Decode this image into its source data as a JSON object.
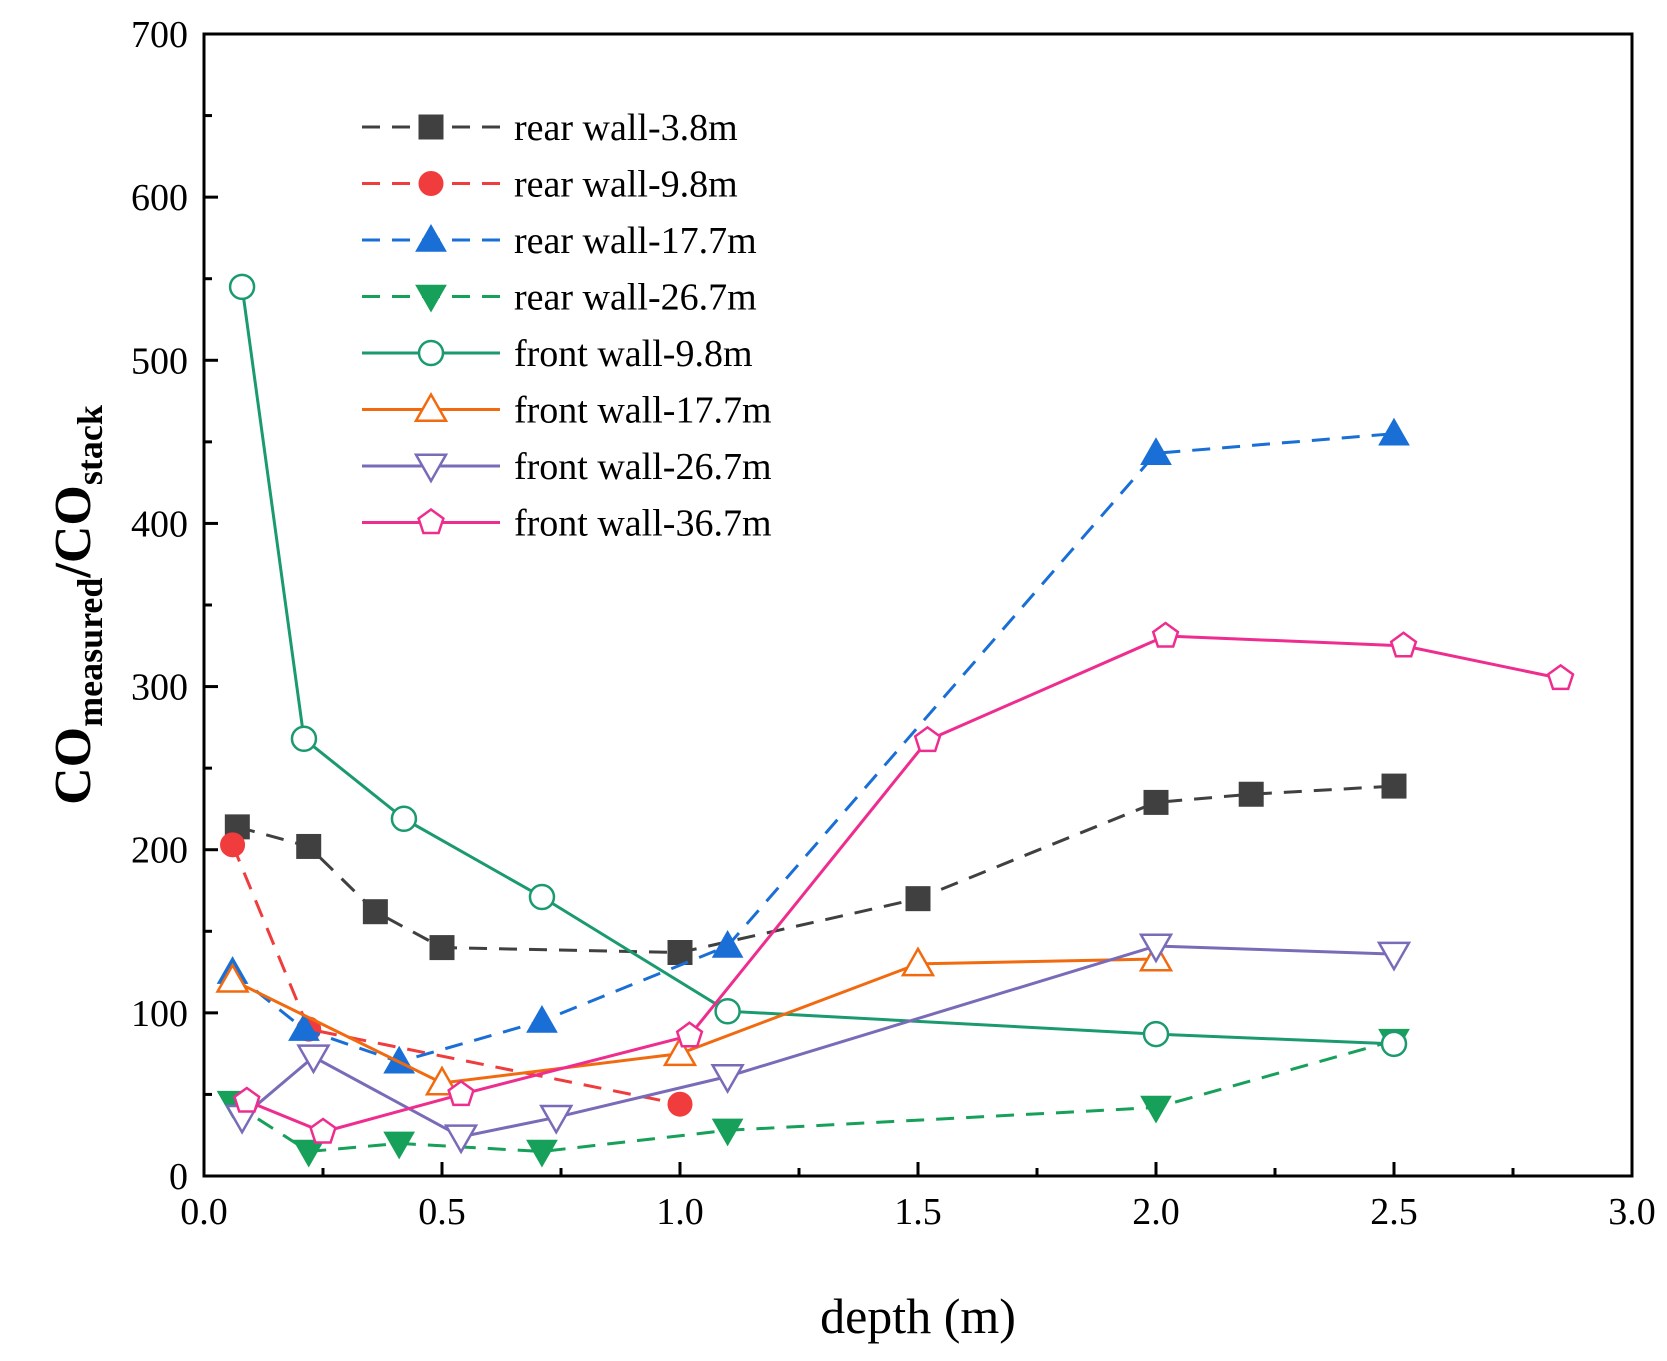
{
  "chart_data": {
    "type": "line",
    "title": "",
    "xlabel": "depth (m)",
    "ylabel": {
      "main": "CO",
      "sub1": "measured",
      "slash": "/CO",
      "sub2": "stack"
    },
    "xlim": [
      0,
      3.0
    ],
    "ylim": [
      0,
      700
    ],
    "xticks": [
      "0.0",
      "0.5",
      "1.0",
      "1.5",
      "2.0",
      "2.5",
      "3.0"
    ],
    "yticks": [
      "0",
      "100",
      "200",
      "300",
      "400",
      "500",
      "600",
      "700"
    ],
    "legend_position": "top-left",
    "series": [
      {
        "name": "rear wall-3.8m",
        "color": "#404040",
        "dash": true,
        "marker": "square",
        "filled": true,
        "x": [
          0.07,
          0.22,
          0.36,
          0.5,
          1.0,
          1.5,
          2.0,
          2.2,
          2.5
        ],
        "y": [
          214,
          202,
          162,
          140,
          137,
          170,
          229,
          234,
          239
        ]
      },
      {
        "name": "rear wall-9.8m",
        "color": "#f03c3c",
        "dash": true,
        "marker": "circle",
        "filled": true,
        "x": [
          0.06,
          0.22,
          1.0
        ],
        "y": [
          203,
          90,
          44
        ]
      },
      {
        "name": "rear wall-17.7m",
        "color": "#1a6fd6",
        "dash": true,
        "marker": "triangle-up",
        "filled": true,
        "x": [
          0.06,
          0.21,
          0.41,
          0.71,
          1.1,
          2.0,
          2.5
        ],
        "y": [
          125,
          90,
          70,
          95,
          141,
          443,
          455
        ]
      },
      {
        "name": "rear wall-26.7m",
        "color": "#16a05a",
        "dash": true,
        "marker": "triangle-down",
        "filled": true,
        "x": [
          0.06,
          0.22,
          0.41,
          0.71,
          1.1,
          2.0,
          2.5
        ],
        "y": [
          45,
          15,
          20,
          15,
          28,
          42,
          83
        ]
      },
      {
        "name": "front wall-9.8m",
        "color": "#1a9a6e",
        "dash": false,
        "marker": "circle",
        "filled": false,
        "x": [
          0.08,
          0.21,
          0.42,
          0.71,
          1.1,
          2.0,
          2.5
        ],
        "y": [
          545,
          268,
          219,
          171,
          101,
          87,
          81
        ]
      },
      {
        "name": "front wall-17.7m",
        "color": "#f26a0f",
        "dash": false,
        "marker": "triangle-up",
        "filled": false,
        "x": [
          0.06,
          0.5,
          1.0,
          1.5,
          2.0
        ],
        "y": [
          120,
          57,
          75,
          130,
          133
        ]
      },
      {
        "name": "front wall-26.7m",
        "color": "#7a6bb8",
        "dash": false,
        "marker": "triangle-down",
        "filled": false,
        "x": [
          0.08,
          0.23,
          0.54,
          0.74,
          1.1,
          2.0,
          2.5
        ],
        "y": [
          36,
          73,
          24,
          36,
          61,
          141,
          136
        ]
      },
      {
        "name": "front wall-36.7m",
        "color": "#ee2d8f",
        "dash": false,
        "marker": "pentagon",
        "filled": false,
        "x": [
          0.09,
          0.25,
          0.54,
          1.02,
          1.52,
          2.02,
          2.52,
          2.85
        ],
        "y": [
          46,
          27,
          50,
          86,
          267,
          331,
          325,
          305
        ]
      }
    ]
  }
}
